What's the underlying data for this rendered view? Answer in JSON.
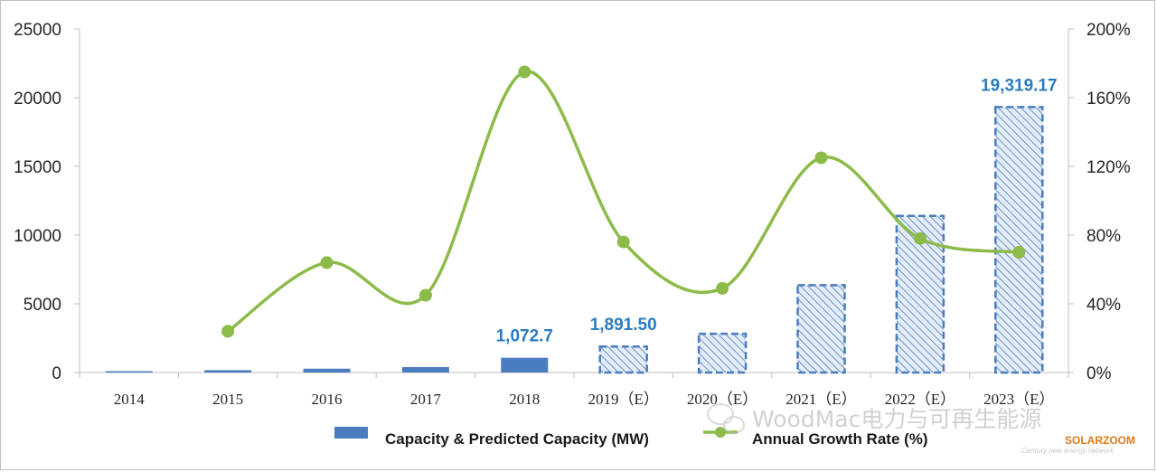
{
  "chart_data": {
    "type": "bar",
    "categories": [
      "2014",
      "2015",
      "2016",
      "2017",
      "2018",
      "2019（E）",
      "2020（E）",
      "2021（E）",
      "2022（E）",
      "2023（E）"
    ],
    "series": [
      {
        "name": "Capacity & Predicted Capacity (MW)",
        "type": "bar",
        "axis": "left",
        "values": [
          100,
          170,
          280,
          400,
          1072.7,
          1891.5,
          2820,
          6360,
          11400,
          19319.17
        ],
        "estimated": [
          false,
          false,
          false,
          false,
          false,
          true,
          true,
          true,
          true,
          true
        ]
      },
      {
        "name": "Annual Growth Rate (%)",
        "type": "line",
        "axis": "right",
        "values": [
          null,
          24,
          64,
          45,
          175,
          76,
          49,
          125,
          78,
          70
        ]
      }
    ],
    "ylim": [
      0,
      25000
    ],
    "y_ticks": [
      "0",
      "5000",
      "10000",
      "15000",
      "20000",
      "25000"
    ],
    "y2lim": [
      0,
      200
    ],
    "y2_ticks": [
      "0%",
      "40%",
      "80%",
      "120%",
      "160%",
      "200%"
    ],
    "data_labels": [
      {
        "category": "2018",
        "text": "1,072.7"
      },
      {
        "category": "2019（E）",
        "text": "1,891.50"
      },
      {
        "category": "2023（E）",
        "text": "19,319.17"
      }
    ],
    "legend_position": "bottom",
    "grid": false,
    "colors": {
      "bar": "#4a7cc0",
      "bar_hatch": "#4a7cc0",
      "bar_hatch_bg": "#e4ecf6",
      "line": "#8dbb4a",
      "marker": "#8dbb4a",
      "data_label": "#2a7cc2"
    }
  },
  "watermark": {
    "text": "WoodMac电力与可再生能源",
    "brand": "SOLARZOOM",
    "sub": "Century new energy network",
    "icon": "wechat-icon"
  }
}
